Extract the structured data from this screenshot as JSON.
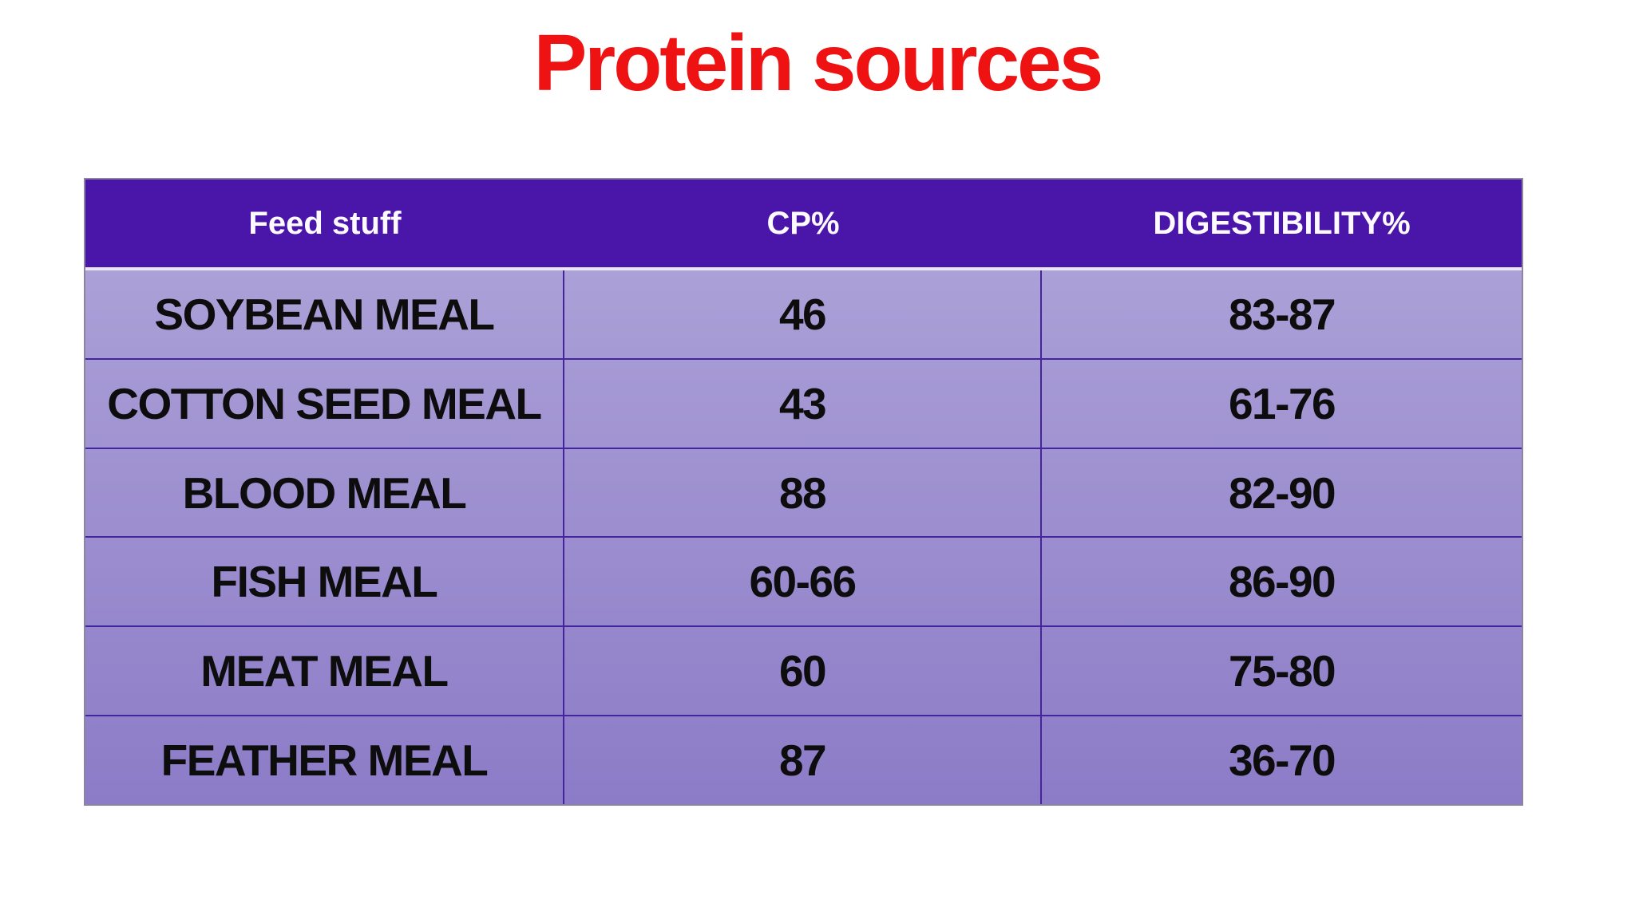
{
  "title": {
    "text": "Protein sources"
  },
  "table": {
    "columns": [
      {
        "key": "feed",
        "label": "Feed stuff"
      },
      {
        "key": "cp",
        "label": "CP%"
      },
      {
        "key": "digestibility",
        "label": "DIGESTIBILITY%"
      }
    ],
    "rows": [
      {
        "feed": "SOYBEAN MEAL",
        "cp": "46",
        "digestibility": "83-87"
      },
      {
        "feed": "COTTON SEED MEAL",
        "cp": "43",
        "digestibility": "61-76"
      },
      {
        "feed": "BLOOD MEAL",
        "cp": "88",
        "digestibility": "82-90"
      },
      {
        "feed": "FISH MEAL",
        "cp": "60-66",
        "digestibility": "86-90"
      },
      {
        "feed": "MEAT MEAL",
        "cp": "60",
        "digestibility": "75-80"
      },
      {
        "feed": "FEATHER MEAL",
        "cp": "87",
        "digestibility": "36-70"
      }
    ]
  },
  "colors": {
    "title_color": "#ee1212",
    "header_bg": "#4a15a9",
    "header_text": "#fdfbff",
    "body_top": "#aba0d7",
    "body_bottom": "#8c7bc7",
    "grid_line": "#43269e",
    "header_separator": "#eae6f6",
    "outer_border": "#8d84a0",
    "cell_text": "#0d0d0d",
    "page_bg": "#ffffff"
  }
}
